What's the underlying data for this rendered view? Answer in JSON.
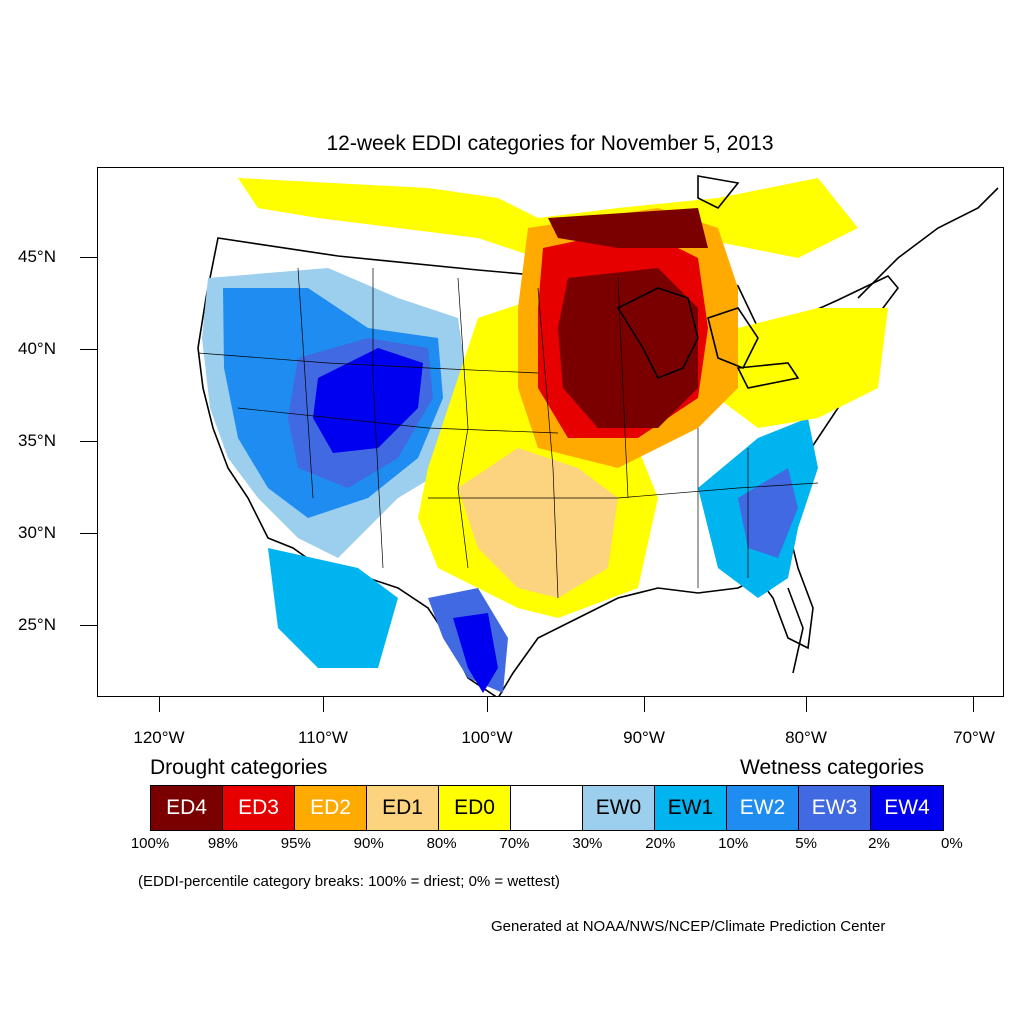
{
  "title": "12-week EDDI categories for November 5, 2013",
  "map": {
    "lat_labels": [
      "45°N",
      "40°N",
      "35°N",
      "30°N",
      "25°N"
    ],
    "lon_labels": [
      "120°W",
      "110°W",
      "100°W",
      "90°W",
      "80°W",
      "70°W"
    ],
    "regions": {
      "drought_core": "Upper Midwest / Great Lakes (ED4–ED3)",
      "drought_plains": "Southern Plains (ED1–ED0)",
      "wet_southwest": "Interior West / Four Corners (EW3–EW4)",
      "wet_southeast": "Southeast coast (EW1–EW3)"
    }
  },
  "legend": {
    "drought_heading": "Drought categories",
    "wetness_heading": "Wetness categories",
    "categories": [
      {
        "label": "ED4",
        "color": "#7a0000",
        "text_color": "#ffffff"
      },
      {
        "label": "ED3",
        "color": "#e60000",
        "text_color": "#ffffff"
      },
      {
        "label": "ED2",
        "color": "#ffaa00",
        "text_color": "#ffffff"
      },
      {
        "label": "ED1",
        "color": "#fcd37f",
        "text_color": "#000000"
      },
      {
        "label": "ED0",
        "color": "#ffff00",
        "text_color": "#000000"
      },
      {
        "label": "",
        "color": "#ffffff",
        "text_color": "#000000"
      },
      {
        "label": "EW0",
        "color": "#9ccfee",
        "text_color": "#000000"
      },
      {
        "label": "EW1",
        "color": "#00b4f0",
        "text_color": "#000000"
      },
      {
        "label": "EW2",
        "color": "#1e8cf0",
        "text_color": "#ffffff"
      },
      {
        "label": "EW3",
        "color": "#4169e1",
        "text_color": "#ffffff"
      },
      {
        "label": "EW4",
        "color": "#0000f0",
        "text_color": "#ffffff"
      }
    ],
    "breaks": [
      "100%",
      "98%",
      "95%",
      "90%",
      "80%",
      "70%",
      "30%",
      "20%",
      "10%",
      "5%",
      "2%",
      "0%"
    ]
  },
  "note": "(EDDI-percentile category breaks: 100% = driest; 0% = wettest)",
  "credit": "Generated at NOAA/NWS/NCEP/Climate Prediction Center"
}
